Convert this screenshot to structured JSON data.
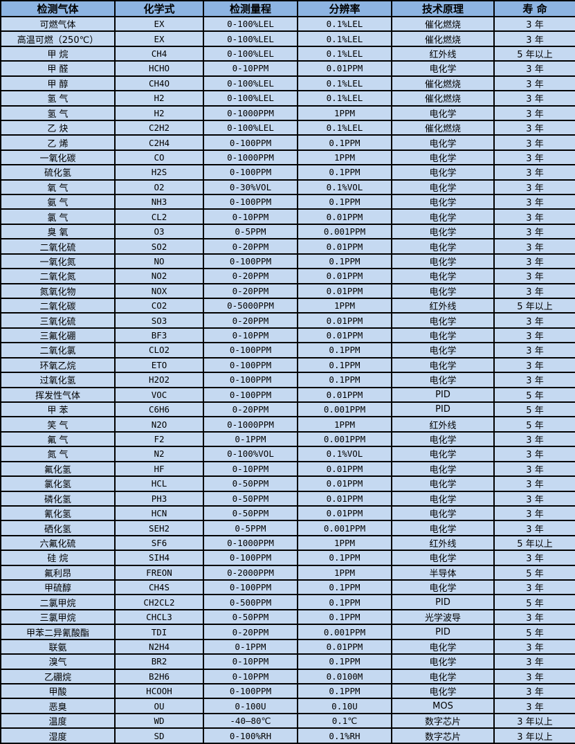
{
  "colors": {
    "header_bg": "#8DB4E2",
    "row_bg": "#C5D9F1",
    "border": "#000000",
    "text": "#000000"
  },
  "table": {
    "headers": [
      "检测气体",
      "化学式",
      "检测量程",
      "分辨率",
      "技术原理",
      "寿 命"
    ],
    "rows": [
      [
        "可燃气体",
        "EX",
        "0-100%LEL",
        "0.1%LEL",
        "催化燃烧",
        "3 年"
      ],
      [
        "高温可燃（250℃）",
        "EX",
        "0-100%LEL",
        "0.1%LEL",
        "催化燃烧",
        "3 年"
      ],
      [
        "甲 烷",
        "CH4",
        "0-100%LEL",
        "0.1%LEL",
        "红外线",
        "5 年以上"
      ],
      [
        "甲 醛",
        "HCHO",
        "0-10PPM",
        "0.01PPM",
        "电化学",
        "3 年"
      ],
      [
        "甲 醇",
        "CH4O",
        "0-100%LEL",
        "0.1%LEL",
        "催化燃烧",
        "3 年"
      ],
      [
        "氢 气",
        "H2",
        "0-100%LEL",
        "0.1%LEL",
        "催化燃烧",
        "3 年"
      ],
      [
        "氢 气",
        "H2",
        "0-1000PPM",
        "1PPM",
        "电化学",
        "3 年"
      ],
      [
        "乙 炔",
        "C2H2",
        "0-100%LEL",
        "0.1%LEL",
        "催化燃烧",
        "3 年"
      ],
      [
        "乙 烯",
        "C2H4",
        "0-100PPM",
        "0.1PPM",
        "电化学",
        "3 年"
      ],
      [
        "一氧化碳",
        "CO",
        "0-1000PPM",
        "1PPM",
        "电化学",
        "3 年"
      ],
      [
        "硫化氢",
        "H2S",
        "0-100PPM",
        "0.1PPM",
        "电化学",
        "3 年"
      ],
      [
        "氧 气",
        "O2",
        "0-30%VOL",
        "0.1%VOL",
        "电化学",
        "3 年"
      ],
      [
        "氨 气",
        "NH3",
        "0-100PPM",
        "0.1PPM",
        "电化学",
        "3 年"
      ],
      [
        "氯 气",
        "CL2",
        "0-10PPM",
        "0.01PPM",
        "电化学",
        "3 年"
      ],
      [
        "臭 氧",
        "O3",
        "0-5PPM",
        "0.001PPM",
        "电化学",
        "3 年"
      ],
      [
        "二氧化硫",
        "SO2",
        "0-20PPM",
        "0.01PPM",
        "电化学",
        "3 年"
      ],
      [
        "一氧化氮",
        "NO",
        "0-100PPM",
        "0.1PPM",
        "电化学",
        "3 年"
      ],
      [
        "二氧化氮",
        "NO2",
        "0-20PPM",
        "0.01PPM",
        "电化学",
        "3 年"
      ],
      [
        "氮氧化物",
        "NOX",
        "0-20PPM",
        "0.01PPM",
        "电化学",
        "3 年"
      ],
      [
        "二氧化碳",
        "CO2",
        "0-5000PPM",
        "1PPM",
        "红外线",
        "5 年以上"
      ],
      [
        "三氧化硫",
        "SO3",
        "0-20PPM",
        "0.01PPM",
        "电化学",
        "3 年"
      ],
      [
        "三氟化硼",
        "BF3",
        "0-10PPM",
        "0.01PPM",
        "电化学",
        "3 年"
      ],
      [
        "二氧化氯",
        "CLO2",
        "0-100PPM",
        "0.1PPM",
        "电化学",
        "3 年"
      ],
      [
        "环氧乙烷",
        "ETO",
        "0-100PPM",
        "0.1PPM",
        "电化学",
        "3 年"
      ],
      [
        "过氧化氢",
        "H2O2",
        "0-100PPM",
        "0.1PPM",
        "电化学",
        "3 年"
      ],
      [
        "挥发性气体",
        "VOC",
        "0-100PPM",
        "0.01PPM",
        "PID",
        "5 年"
      ],
      [
        "甲 苯",
        "C6H6",
        "0-20PPM",
        "0.001PPM",
        "PID",
        "5 年"
      ],
      [
        "笑 气",
        "N2O",
        "0-1000PPM",
        "1PPM",
        "红外线",
        "5 年"
      ],
      [
        "氟 气",
        "F2",
        "0-1PPM",
        "0.001PPM",
        "电化学",
        "3 年"
      ],
      [
        "氮 气",
        "N2",
        "0-100%VOL",
        "0.1%VOL",
        "电化学",
        "3 年"
      ],
      [
        "氟化氢",
        "HF",
        "0-10PPM",
        "0.01PPM",
        "电化学",
        "3 年"
      ],
      [
        "氯化氢",
        "HCL",
        "0-50PPM",
        "0.01PPM",
        "电化学",
        "3 年"
      ],
      [
        "磷化氢",
        "PH3",
        "0-50PPM",
        "0.01PPM",
        "电化学",
        "3 年"
      ],
      [
        "氰化氢",
        "HCN",
        "0-50PPM",
        "0.01PPM",
        "电化学",
        "3 年"
      ],
      [
        "硒化氢",
        "SEH2",
        "0-5PPM",
        "0.001PPM",
        "电化学",
        "3 年"
      ],
      [
        "六氟化硫",
        "SF6",
        "0-1000PPM",
        "1PPM",
        "红外线",
        "5 年以上"
      ],
      [
        "硅 烷",
        "SIH4",
        "0-100PPM",
        "0.1PPM",
        "电化学",
        "3 年"
      ],
      [
        "氟利昂",
        "FREON",
        "0-2000PPM",
        "1PPM",
        "半导体",
        "5 年"
      ],
      [
        "甲硫醇",
        "CH4S",
        "0-100PPM",
        "0.1PPM",
        "电化学",
        "3 年"
      ],
      [
        "二氯甲烷",
        "CH2CL2",
        "0-500PPM",
        "0.1PPM",
        "PID",
        "5 年"
      ],
      [
        "三氯甲烷",
        "CHCL3",
        "0-50PPM",
        "0.1PPM",
        "光学波导",
        "3 年"
      ],
      [
        "甲苯二异氰酸酯",
        "TDI",
        "0-20PPM",
        "0.001PPM",
        "PID",
        "5 年"
      ],
      [
        "联氨",
        "N2H4",
        "0-1PPM",
        "0.01PPM",
        "电化学",
        "3 年"
      ],
      [
        "溴气",
        "BR2",
        "0-10PPM",
        "0.1PPM",
        "电化学",
        "3 年"
      ],
      [
        "乙硼烷",
        "B2H6",
        "0-10PPM",
        "0.0100M",
        "电化学",
        "3 年"
      ],
      [
        "甲酸",
        "HCOOH",
        "0-100PPM",
        "0.1PPM",
        "电化学",
        "3 年"
      ],
      [
        "恶臭",
        "OU",
        "0-100U",
        "0.10U",
        "MOS",
        "3 年"
      ],
      [
        "温度",
        "WD",
        "-40—80℃",
        "0.1℃",
        "数字芯片",
        "3 年以上"
      ],
      [
        "湿度",
        "SD",
        "0-100%RH",
        "0.1%RH",
        "数字芯片",
        "3 年以上"
      ]
    ]
  }
}
